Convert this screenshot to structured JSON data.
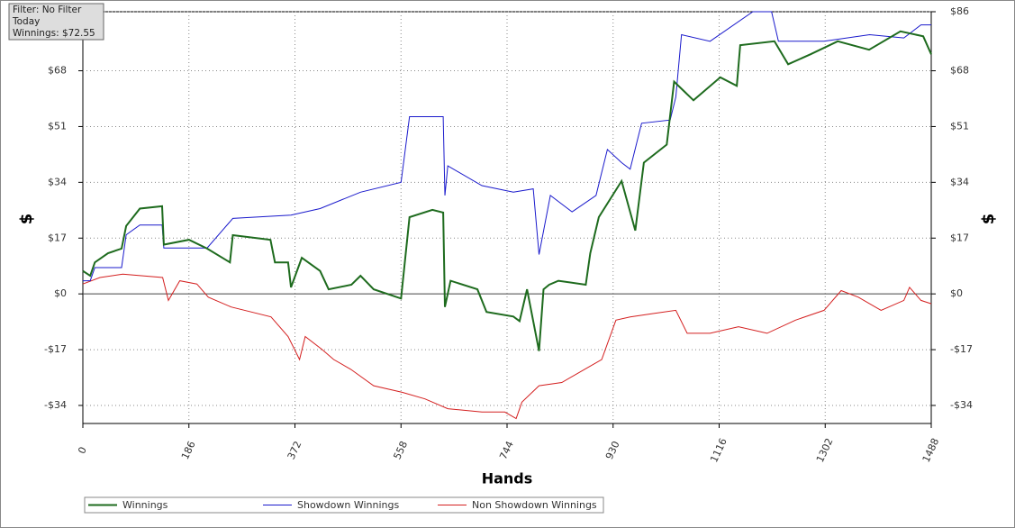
{
  "filter_box": {
    "lines": [
      "Filter: No Filter",
      "Today",
      "Winnings: $72.55"
    ]
  },
  "chart_data": {
    "type": "line",
    "x_label": "Hands",
    "y_label": "$",
    "y2_label": "$",
    "xlim": [
      0,
      1488
    ],
    "xticks": [
      0,
      186,
      372,
      558,
      744,
      930,
      1116,
      1302,
      1488
    ],
    "ylim": [
      -39.5,
      86
    ],
    "yticks": [
      {
        "value": -34,
        "label": "-$34"
      },
      {
        "value": -17,
        "label": "-$17"
      },
      {
        "value": 0,
        "label": "$0"
      },
      {
        "value": 17,
        "label": "$17"
      },
      {
        "value": 34,
        "label": "$34"
      },
      {
        "value": 51,
        "label": "$51"
      },
      {
        "value": 68,
        "label": "$68"
      },
      {
        "value": 86,
        "label": "$86"
      }
    ],
    "grid": true,
    "series": [
      {
        "name": "Winnings",
        "color": "#1e6b1e",
        "x": [
          0,
          13,
          21,
          44,
          68,
          76,
          100,
          139,
          142,
          186,
          218,
          258,
          263,
          329,
          337,
          360,
          365,
          384,
          416,
          431,
          471,
          487,
          510,
          558,
          573,
          613,
          632,
          635,
          645,
          692,
          708,
          755,
          766,
          779,
          800,
          808,
          818,
          834,
          882,
          890,
          905,
          945,
          969,
          984,
          1024,
          1037,
          1071,
          1118,
          1147,
          1153,
          1213,
          1237,
          1276,
          1324,
          1379,
          1434,
          1474,
          1488
        ],
        "values": [
          7,
          5.5,
          9.6,
          12.4,
          13.8,
          20.7,
          26,
          26.7,
          15,
          16.5,
          13.8,
          9.6,
          17.9,
          16.5,
          9.6,
          9.6,
          2,
          11,
          7,
          1.4,
          2.8,
          5.5,
          1.4,
          -1.4,
          23.4,
          25.6,
          24.8,
          -4,
          4,
          1.4,
          -5.5,
          -6.9,
          -8.3,
          1.4,
          -17.4,
          1.4,
          2.8,
          4,
          2.8,
          12.4,
          23.4,
          34.4,
          19.3,
          40,
          45.5,
          64.7,
          59,
          66,
          63.4,
          75.8,
          77,
          70,
          73,
          77,
          74.4,
          80,
          78.5,
          73
        ]
      },
      {
        "name": "Showdown Winnings",
        "color": "#1a1acc",
        "x": [
          0,
          13,
          21,
          68,
          76,
          100,
          139,
          142,
          218,
          263,
          365,
          416,
          487,
          558,
          573,
          632,
          635,
          640,
          700,
          755,
          790,
          800,
          820,
          858,
          900,
          920,
          945,
          960,
          980,
          1030,
          1040,
          1050,
          1100,
          1175,
          1208,
          1220,
          1300,
          1380,
          1440,
          1470,
          1488
        ],
        "values": [
          4,
          4,
          8,
          8,
          18,
          21,
          21,
          14,
          14,
          23,
          24,
          26,
          31,
          34,
          54,
          54,
          30,
          39,
          33,
          31,
          32,
          12,
          30,
          25,
          30,
          44,
          40,
          38,
          52,
          53,
          60,
          79,
          77,
          86,
          86,
          77,
          77,
          79,
          78,
          82,
          82
        ]
      },
      {
        "name": "Non Showdown Winnings",
        "color": "#d42020",
        "x": [
          0,
          30,
          70,
          140,
          150,
          170,
          200,
          220,
          260,
          330,
          360,
          380,
          390,
          420,
          440,
          470,
          510,
          560,
          600,
          640,
          700,
          740,
          760,
          770,
          800,
          840,
          880,
          910,
          935,
          960,
          1000,
          1040,
          1060,
          1100,
          1150,
          1200,
          1250,
          1300,
          1330,
          1360,
          1400,
          1440,
          1450,
          1470,
          1488
        ],
        "values": [
          3,
          5,
          6,
          5,
          -2,
          4,
          3,
          -1,
          -4,
          -7,
          -13,
          -20,
          -13,
          -17,
          -20,
          -23,
          -28,
          -30,
          -32,
          -35,
          -36,
          -36,
          -38,
          -33,
          -28,
          -27,
          -23,
          -20,
          -8,
          -7,
          -6,
          -5,
          -12,
          -12,
          -10,
          -12,
          -8,
          -5,
          1,
          -1,
          -5,
          -2,
          2,
          -2,
          -3
        ]
      }
    ]
  }
}
